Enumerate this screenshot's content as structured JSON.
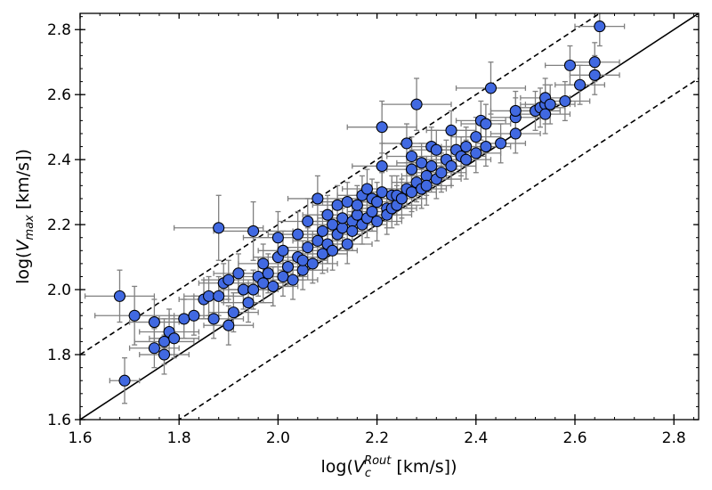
{
  "chart_data": {
    "type": "scatter",
    "xlabel": "log(V_c^Rout [km/s])",
    "ylabel": "log(V_max [km/s])",
    "xlabel_parts": {
      "prefix": "log(",
      "main": "V",
      "sub": "c",
      "sup": "Rout",
      "suffix": " [km/s])"
    },
    "ylabel_parts": {
      "prefix": "log(",
      "main": "V",
      "sub": "max",
      "suffix": " [km/s])"
    },
    "xlim": [
      1.6,
      2.85
    ],
    "ylim": [
      1.6,
      2.85
    ],
    "xticks": [
      1.6,
      1.8,
      2.0,
      2.2,
      2.4,
      2.6,
      2.8
    ],
    "yticks": [
      1.6,
      1.8,
      2.0,
      2.2,
      2.4,
      2.6,
      2.8
    ],
    "xtick_labels": [
      "1.6",
      "1.8",
      "2.0",
      "2.2",
      "2.4",
      "2.6",
      "2.8"
    ],
    "ytick_labels": [
      "1.6",
      "1.8",
      "2.0",
      "2.2",
      "2.4",
      "2.6",
      "2.8"
    ],
    "grid": false,
    "lines": [
      {
        "name": "one-to-one",
        "style": "solid",
        "slope": 1,
        "offset": 0.0
      },
      {
        "name": "upper-bound",
        "style": "dashed",
        "slope": 1,
        "offset": 0.2
      },
      {
        "name": "lower-bound",
        "style": "dashed",
        "slope": 1,
        "offset": -0.2
      }
    ],
    "series": [
      {
        "name": "galaxies",
        "marker_color": "#4169e1",
        "marker_edge": "#000000",
        "error_color": "#808080",
        "points": [
          [
            1.69,
            1.72,
            0.03,
            0.07
          ],
          [
            1.68,
            1.98,
            0.07,
            0.08
          ],
          [
            1.71,
            1.92,
            0.08,
            0.09
          ],
          [
            1.75,
            1.9,
            0.05,
            0.07
          ],
          [
            1.75,
            1.82,
            0.05,
            0.06
          ],
          [
            1.77,
            1.84,
            0.06,
            0.07
          ],
          [
            1.77,
            1.8,
            0.05,
            0.06
          ],
          [
            1.78,
            1.87,
            0.06,
            0.07
          ],
          [
            1.79,
            1.85,
            0.05,
            0.06
          ],
          [
            1.81,
            1.91,
            0.05,
            0.06
          ],
          [
            1.83,
            1.92,
            0.05,
            0.06
          ],
          [
            1.85,
            1.97,
            0.05,
            0.06
          ],
          [
            1.86,
            1.98,
            0.05,
            0.06
          ],
          [
            1.87,
            1.91,
            0.06,
            0.06
          ],
          [
            1.88,
            1.98,
            0.05,
            0.06
          ],
          [
            1.88,
            2.19,
            0.09,
            0.1
          ],
          [
            1.89,
            2.02,
            0.05,
            0.06
          ],
          [
            1.9,
            2.03,
            0.05,
            0.06
          ],
          [
            1.9,
            1.89,
            0.05,
            0.06
          ],
          [
            1.91,
            1.93,
            0.05,
            0.06
          ],
          [
            1.92,
            2.05,
            0.05,
            0.06
          ],
          [
            1.93,
            2.0,
            0.05,
            0.06
          ],
          [
            1.94,
            1.96,
            0.05,
            0.06
          ],
          [
            1.95,
            2.18,
            0.08,
            0.09
          ],
          [
            1.95,
            2.0,
            0.05,
            0.06
          ],
          [
            1.96,
            2.04,
            0.05,
            0.06
          ],
          [
            1.97,
            2.08,
            0.05,
            0.06
          ],
          [
            1.97,
            2.02,
            0.05,
            0.06
          ],
          [
            1.98,
            2.05,
            0.05,
            0.06
          ],
          [
            1.99,
            2.01,
            0.05,
            0.06
          ],
          [
            2.0,
            2.1,
            0.05,
            0.06
          ],
          [
            2.0,
            2.16,
            0.07,
            0.08
          ],
          [
            2.01,
            2.04,
            0.05,
            0.06
          ],
          [
            2.01,
            2.12,
            0.05,
            0.06
          ],
          [
            2.02,
            2.07,
            0.05,
            0.06
          ],
          [
            2.03,
            2.03,
            0.05,
            0.06
          ],
          [
            2.04,
            2.1,
            0.05,
            0.06
          ],
          [
            2.04,
            2.17,
            0.06,
            0.07
          ],
          [
            2.05,
            2.06,
            0.05,
            0.06
          ],
          [
            2.05,
            2.09,
            0.05,
            0.06
          ],
          [
            2.06,
            2.13,
            0.05,
            0.06
          ],
          [
            2.06,
            2.21,
            0.06,
            0.07
          ],
          [
            2.07,
            2.08,
            0.05,
            0.06
          ],
          [
            2.08,
            2.15,
            0.05,
            0.06
          ],
          [
            2.08,
            2.28,
            0.06,
            0.07
          ],
          [
            2.09,
            2.11,
            0.05,
            0.06
          ],
          [
            2.09,
            2.18,
            0.05,
            0.06
          ],
          [
            2.1,
            2.14,
            0.05,
            0.06
          ],
          [
            2.1,
            2.23,
            0.05,
            0.06
          ],
          [
            2.11,
            2.2,
            0.05,
            0.06
          ],
          [
            2.11,
            2.12,
            0.05,
            0.06
          ],
          [
            2.12,
            2.26,
            0.05,
            0.06
          ],
          [
            2.12,
            2.17,
            0.05,
            0.06
          ],
          [
            2.13,
            2.19,
            0.05,
            0.06
          ],
          [
            2.13,
            2.22,
            0.05,
            0.06
          ],
          [
            2.14,
            2.14,
            0.05,
            0.06
          ],
          [
            2.14,
            2.27,
            0.05,
            0.06
          ],
          [
            2.15,
            2.21,
            0.05,
            0.06
          ],
          [
            2.15,
            2.18,
            0.05,
            0.06
          ],
          [
            2.16,
            2.23,
            0.05,
            0.06
          ],
          [
            2.16,
            2.26,
            0.05,
            0.06
          ],
          [
            2.17,
            2.2,
            0.05,
            0.06
          ],
          [
            2.17,
            2.29,
            0.05,
            0.06
          ],
          [
            2.18,
            2.22,
            0.05,
            0.06
          ],
          [
            2.18,
            2.31,
            0.05,
            0.06
          ],
          [
            2.19,
            2.24,
            0.05,
            0.06
          ],
          [
            2.19,
            2.28,
            0.05,
            0.06
          ],
          [
            2.2,
            2.21,
            0.05,
            0.06
          ],
          [
            2.2,
            2.27,
            0.05,
            0.06
          ],
          [
            2.21,
            2.5,
            0.07,
            0.08
          ],
          [
            2.21,
            2.38,
            0.06,
            0.07
          ],
          [
            2.21,
            2.3,
            0.05,
            0.06
          ],
          [
            2.22,
            2.25,
            0.05,
            0.06
          ],
          [
            2.22,
            2.23,
            0.05,
            0.06
          ],
          [
            2.23,
            2.29,
            0.05,
            0.06
          ],
          [
            2.23,
            2.25,
            0.05,
            0.06
          ],
          [
            2.24,
            2.26,
            0.05,
            0.06
          ],
          [
            2.24,
            2.29,
            0.05,
            0.06
          ],
          [
            2.25,
            2.28,
            0.05,
            0.06
          ],
          [
            2.26,
            2.31,
            0.05,
            0.06
          ],
          [
            2.26,
            2.45,
            0.05,
            0.06
          ],
          [
            2.27,
            2.41,
            0.05,
            0.06
          ],
          [
            2.27,
            2.3,
            0.05,
            0.06
          ],
          [
            2.27,
            2.37,
            0.05,
            0.06
          ],
          [
            2.28,
            2.57,
            0.07,
            0.08
          ],
          [
            2.28,
            2.33,
            0.05,
            0.06
          ],
          [
            2.29,
            2.39,
            0.05,
            0.06
          ],
          [
            2.29,
            2.31,
            0.05,
            0.06
          ],
          [
            2.3,
            2.35,
            0.05,
            0.06
          ],
          [
            2.3,
            2.32,
            0.05,
            0.06
          ],
          [
            2.31,
            2.44,
            0.05,
            0.06
          ],
          [
            2.31,
            2.38,
            0.05,
            0.06
          ],
          [
            2.32,
            2.34,
            0.05,
            0.06
          ],
          [
            2.32,
            2.43,
            0.05,
            0.06
          ],
          [
            2.33,
            2.36,
            0.05,
            0.06
          ],
          [
            2.34,
            2.4,
            0.05,
            0.06
          ],
          [
            2.35,
            2.49,
            0.05,
            0.06
          ],
          [
            2.35,
            2.38,
            0.05,
            0.06
          ],
          [
            2.36,
            2.43,
            0.05,
            0.06
          ],
          [
            2.37,
            2.41,
            0.05,
            0.06
          ],
          [
            2.38,
            2.4,
            0.05,
            0.06
          ],
          [
            2.38,
            2.44,
            0.05,
            0.06
          ],
          [
            2.4,
            2.42,
            0.05,
            0.06
          ],
          [
            2.4,
            2.47,
            0.05,
            0.06
          ],
          [
            2.41,
            2.52,
            0.05,
            0.06
          ],
          [
            2.42,
            2.51,
            0.05,
            0.06
          ],
          [
            2.42,
            2.44,
            0.05,
            0.06
          ],
          [
            2.43,
            2.62,
            0.07,
            0.08
          ],
          [
            2.45,
            2.45,
            0.05,
            0.06
          ],
          [
            2.48,
            2.48,
            0.05,
            0.06
          ],
          [
            2.48,
            2.53,
            0.05,
            0.06
          ],
          [
            2.48,
            2.55,
            0.05,
            0.06
          ],
          [
            2.52,
            2.55,
            0.05,
            0.06
          ],
          [
            2.53,
            2.56,
            0.05,
            0.06
          ],
          [
            2.54,
            2.57,
            0.05,
            0.06
          ],
          [
            2.54,
            2.59,
            0.05,
            0.06
          ],
          [
            2.54,
            2.54,
            0.05,
            0.06
          ],
          [
            2.55,
            2.57,
            0.05,
            0.06
          ],
          [
            2.58,
            2.58,
            0.05,
            0.06
          ],
          [
            2.59,
            2.69,
            0.05,
            0.06
          ],
          [
            2.61,
            2.63,
            0.05,
            0.06
          ],
          [
            2.64,
            2.7,
            0.05,
            0.06
          ],
          [
            2.64,
            2.66,
            0.05,
            0.06
          ],
          [
            2.65,
            2.81,
            0.05,
            0.06
          ]
        ]
      }
    ]
  }
}
